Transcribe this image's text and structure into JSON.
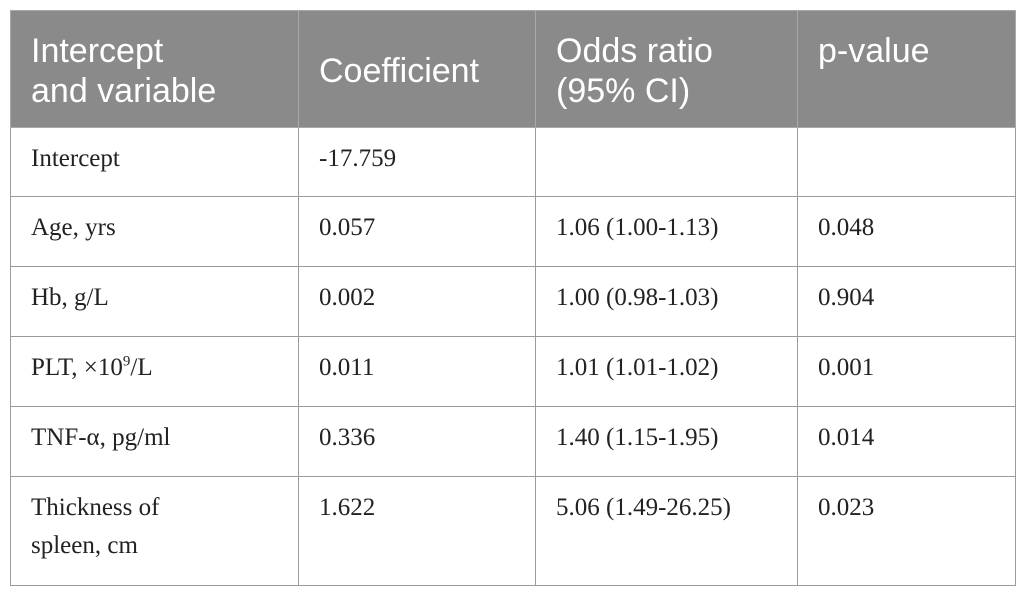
{
  "table": {
    "headers": {
      "col1_line1": "Intercept",
      "col1_line2": "and variable",
      "col2": "Coefficient",
      "col3_line1": "Odds ratio",
      "col3_line2": "(95% CI)",
      "col4": "p-value"
    },
    "rows": [
      {
        "variable": "Intercept",
        "coefficient": "-17.759",
        "odds_ratio": "",
        "p_value": ""
      },
      {
        "variable": "Age, yrs",
        "coefficient": "0.057",
        "odds_ratio": "1.06 (1.00-1.13)",
        "p_value": "0.048"
      },
      {
        "variable": "Hb, g/L",
        "coefficient": "0.002",
        "odds_ratio": "1.00 (0.98-1.03)",
        "p_value": "0.904"
      },
      {
        "variable_prefix": "PLT, ×10",
        "variable_sup": "9",
        "variable_suffix": "/L",
        "coefficient": "0.011",
        "odds_ratio": "1.01 (1.01-1.02)",
        "p_value": "0.001"
      },
      {
        "variable": "TNF-α, pg/ml",
        "coefficient": "0.336",
        "odds_ratio": "1.40 (1.15-1.95)",
        "p_value": "0.014"
      },
      {
        "variable_line1": "Thickness of",
        "variable_line2": "spleen, cm",
        "coefficient": "1.622",
        "odds_ratio": "5.06 (1.49-26.25)",
        "p_value": "0.023"
      }
    ]
  },
  "colors": {
    "header_bg": "#8a8a8a",
    "header_text": "#ffffff",
    "border": "#9a9a9a",
    "body_text": "#222222"
  }
}
